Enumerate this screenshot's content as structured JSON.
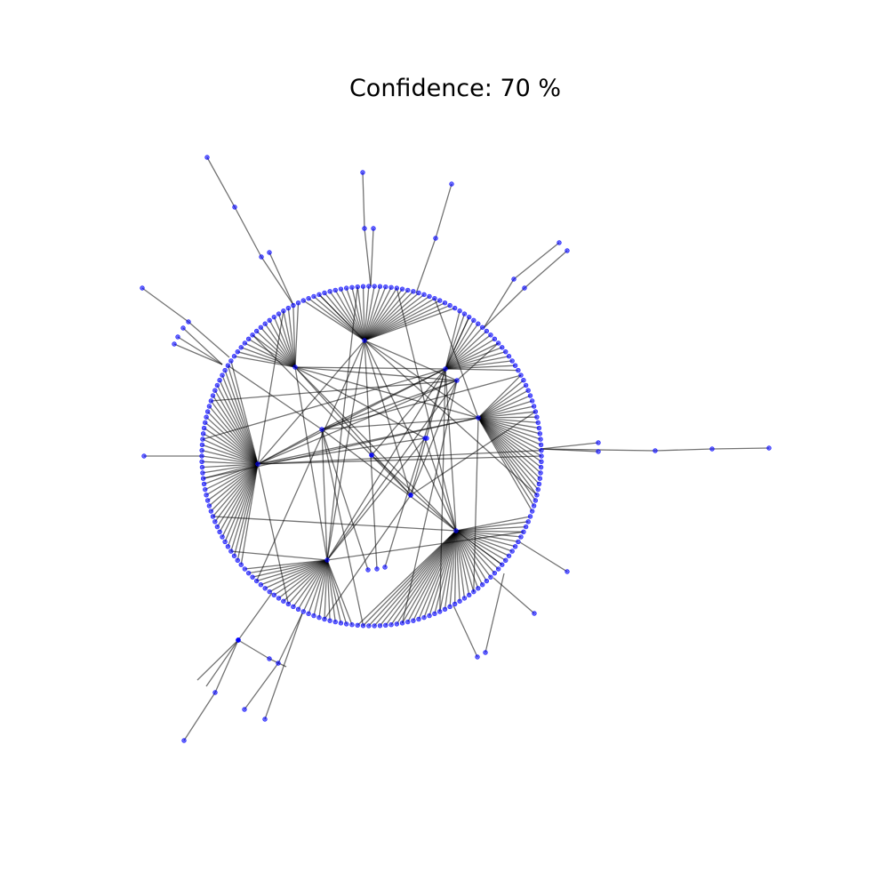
{
  "title": "Confidence: 70 %",
  "colors": {
    "background": "#ffffff",
    "node": "#0000ff",
    "edge": "#000000",
    "title": "#000000"
  },
  "node_count_hint": "network graph with 7 hub nodes and peripheral leaf nodes arranged roughly on a circle"
}
